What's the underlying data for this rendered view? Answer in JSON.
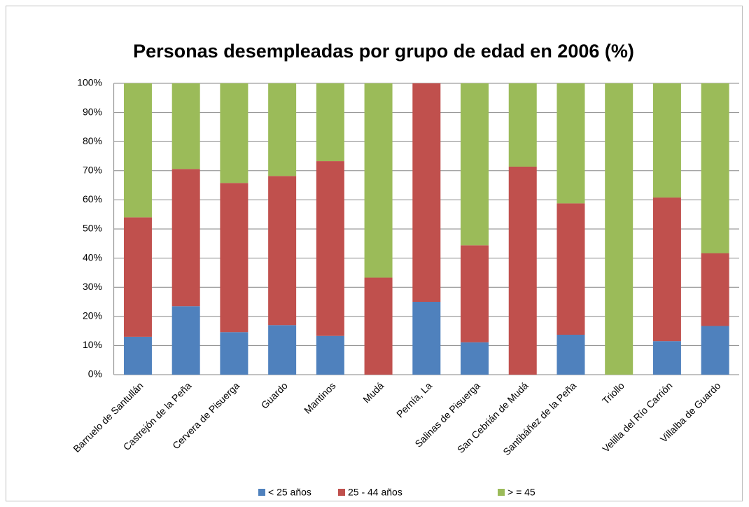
{
  "chart_data": {
    "type": "stacked_bar",
    "title": "Personas desempleadas por grupo de edad en 2006 (%)",
    "categories": [
      "Barruelo de Santullán",
      "Castrejón de la Peña",
      "Cervera de Pisuerga",
      "Guardo",
      "Mantinos",
      "Mudá",
      "Pernía, La",
      "Salinas de Pisuerga",
      "San Cebrián de Mudá",
      "Santibáñez de la Peña",
      "Triollo",
      "Velilla del Río Carrión",
      "Villalba de Guardo"
    ],
    "series": [
      {
        "name": "< 25 años",
        "color": "#4f81bd",
        "values": [
          13,
          23.5,
          14.6,
          17,
          13.3,
          0,
          25,
          11.1,
          0,
          13.7,
          0,
          11.5,
          16.7
        ]
      },
      {
        "name": "25 - 44 años",
        "color": "#c0504d",
        "values": [
          41,
          47.1,
          51.2,
          51.2,
          60,
          33.3,
          75,
          33.3,
          71.4,
          45.1,
          0,
          49.3,
          25
        ]
      },
      {
        "name": "> = 45",
        "color": "#9bbb59",
        "values": [
          46,
          29.4,
          34.2,
          31.8,
          26.7,
          66.7,
          0,
          55.6,
          28.6,
          41.2,
          100,
          39.2,
          58.3
        ]
      }
    ],
    "ylim": [
      0,
      100
    ],
    "yticks": [
      {
        "value": 0,
        "label": "0%"
      },
      {
        "value": 10,
        "label": "10%"
      },
      {
        "value": 20,
        "label": "20%"
      },
      {
        "value": 30,
        "label": "30%"
      },
      {
        "value": 40,
        "label": "40%"
      },
      {
        "value": 50,
        "label": "50%"
      },
      {
        "value": 60,
        "label": "60%"
      },
      {
        "value": 70,
        "label": "70%"
      },
      {
        "value": 80,
        "label": "80%"
      },
      {
        "value": 90,
        "label": "90%"
      },
      {
        "value": 100,
        "label": "100%"
      }
    ],
    "grid": true,
    "legend": "bottom"
  }
}
